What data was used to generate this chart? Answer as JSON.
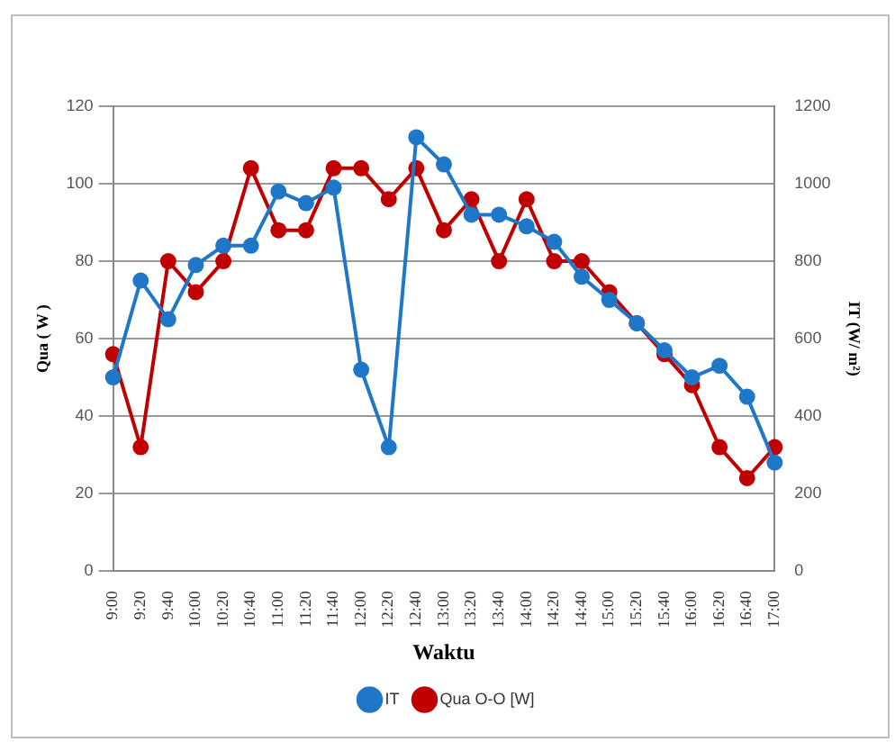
{
  "chart_data": {
    "type": "line",
    "xlabel": "Waktu",
    "ylabel": "Qua ( W )",
    "y2label": "IT (W/ m²)",
    "categories": [
      "9:00",
      "9:20",
      "9:40",
      "10:00",
      "10:20",
      "10:40",
      "11:00",
      "11:20",
      "11:40",
      "12:00",
      "12:20",
      "12:40",
      "13:00",
      "13:20",
      "13:40",
      "14:00",
      "14:20",
      "14:40",
      "15:00",
      "15:20",
      "15:40",
      "16:00",
      "16:20",
      "16:40",
      "17:00"
    ],
    "series": [
      {
        "name": "Qua O-O [W]",
        "color": "#c00000",
        "values": [
          56,
          32,
          80,
          72,
          80,
          104,
          88,
          88,
          104,
          104,
          96,
          104,
          88,
          96,
          80,
          96,
          80,
          80,
          72,
          64,
          56,
          48,
          32,
          24,
          32
        ]
      },
      {
        "name": "IT",
        "color": "#1f77c8",
        "axis": "y2",
        "values": [
          500,
          750,
          650,
          790,
          840,
          840,
          980,
          950,
          990,
          520,
          320,
          1120,
          1050,
          920,
          920,
          890,
          850,
          760,
          700,
          640,
          570,
          500,
          530,
          450,
          280
        ]
      }
    ],
    "ylim": [
      0,
      120
    ],
    "yticks": [
      0,
      20,
      40,
      60,
      80,
      100,
      120
    ],
    "y2lim": [
      0,
      1200
    ],
    "y2ticks": [
      0,
      200,
      400,
      600,
      800,
      1000,
      1200
    ],
    "grid": "y",
    "legend": "bottom",
    "marker": "circle",
    "line_style": "solid"
  }
}
